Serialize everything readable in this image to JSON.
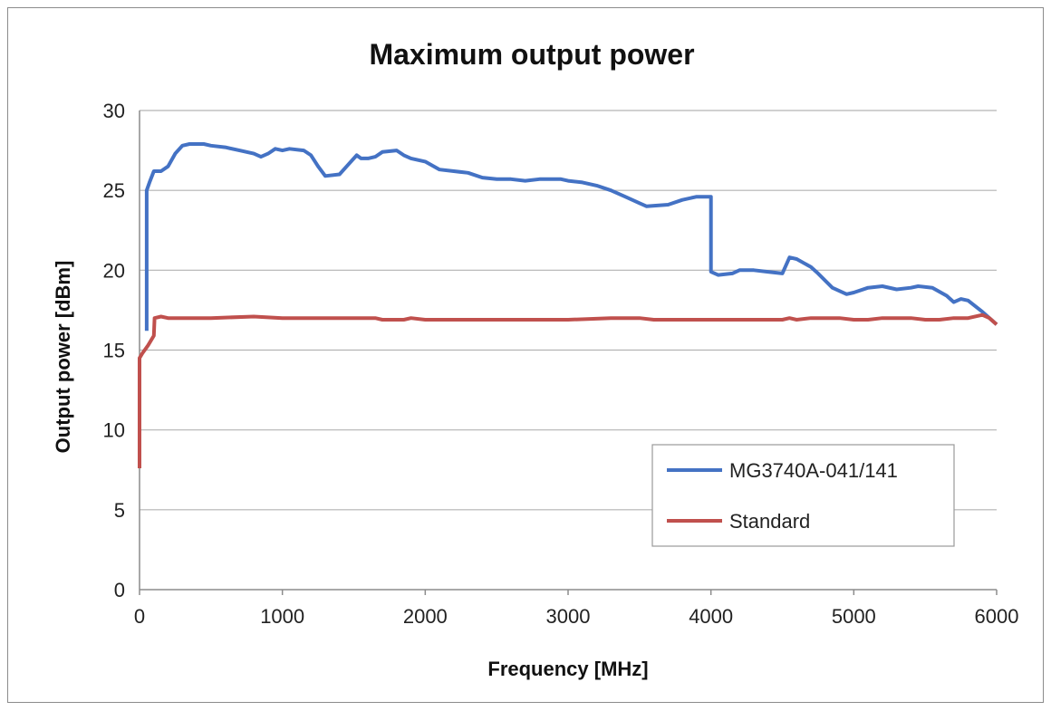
{
  "chart_data": {
    "type": "line",
    "title": "Maximum output power",
    "xlabel": "Frequency [MHz]",
    "ylabel": "Output power [dBm]",
    "xlim": [
      0,
      6000
    ],
    "ylim": [
      0,
      30
    ],
    "x_ticks": [
      "0",
      "1000",
      "2000",
      "3000",
      "4000",
      "5000",
      "6000"
    ],
    "y_ticks": [
      "0",
      "5",
      "10",
      "15",
      "20",
      "25",
      "30"
    ],
    "grid": "horizontal",
    "legend_position": "bottom-right",
    "series": [
      {
        "name": "MG3740A-041/141",
        "color": "#4472c4",
        "points": [
          [
            50,
            16.2
          ],
          [
            50,
            25.0
          ],
          [
            70,
            25.5
          ],
          [
            100,
            26.2
          ],
          [
            150,
            26.2
          ],
          [
            200,
            26.5
          ],
          [
            250,
            27.3
          ],
          [
            300,
            27.8
          ],
          [
            350,
            27.9
          ],
          [
            450,
            27.9
          ],
          [
            500,
            27.8
          ],
          [
            600,
            27.7
          ],
          [
            700,
            27.5
          ],
          [
            800,
            27.3
          ],
          [
            850,
            27.1
          ],
          [
            900,
            27.3
          ],
          [
            950,
            27.6
          ],
          [
            1000,
            27.5
          ],
          [
            1050,
            27.6
          ],
          [
            1150,
            27.5
          ],
          [
            1200,
            27.2
          ],
          [
            1250,
            26.5
          ],
          [
            1300,
            25.9
          ],
          [
            1400,
            26.0
          ],
          [
            1450,
            26.5
          ],
          [
            1520,
            27.2
          ],
          [
            1550,
            27.0
          ],
          [
            1600,
            27.0
          ],
          [
            1650,
            27.1
          ],
          [
            1700,
            27.4
          ],
          [
            1800,
            27.5
          ],
          [
            1850,
            27.2
          ],
          [
            1900,
            27.0
          ],
          [
            2000,
            26.8
          ],
          [
            2100,
            26.3
          ],
          [
            2200,
            26.2
          ],
          [
            2300,
            26.1
          ],
          [
            2400,
            25.8
          ],
          [
            2500,
            25.7
          ],
          [
            2600,
            25.7
          ],
          [
            2700,
            25.6
          ],
          [
            2800,
            25.7
          ],
          [
            2950,
            25.7
          ],
          [
            3000,
            25.6
          ],
          [
            3100,
            25.5
          ],
          [
            3200,
            25.3
          ],
          [
            3300,
            25.0
          ],
          [
            3400,
            24.6
          ],
          [
            3500,
            24.2
          ],
          [
            3550,
            24.0
          ],
          [
            3700,
            24.1
          ],
          [
            3800,
            24.4
          ],
          [
            3900,
            24.6
          ],
          [
            4000,
            24.6
          ],
          [
            4000,
            19.9
          ],
          [
            4050,
            19.7
          ],
          [
            4150,
            19.8
          ],
          [
            4200,
            20.0
          ],
          [
            4300,
            20.0
          ],
          [
            4400,
            19.9
          ],
          [
            4500,
            19.8
          ],
          [
            4550,
            20.8
          ],
          [
            4600,
            20.7
          ],
          [
            4700,
            20.2
          ],
          [
            4750,
            19.8
          ],
          [
            4850,
            18.9
          ],
          [
            4950,
            18.5
          ],
          [
            5000,
            18.6
          ],
          [
            5100,
            18.9
          ],
          [
            5200,
            19.0
          ],
          [
            5300,
            18.8
          ],
          [
            5400,
            18.9
          ],
          [
            5450,
            19.0
          ],
          [
            5550,
            18.9
          ],
          [
            5650,
            18.4
          ],
          [
            5700,
            18.0
          ],
          [
            5750,
            18.2
          ],
          [
            5800,
            18.1
          ],
          [
            5900,
            17.4
          ],
          [
            6000,
            16.6
          ]
        ]
      },
      {
        "name": "Standard",
        "color": "#c0504d",
        "points": [
          [
            0,
            7.6
          ],
          [
            0,
            14.5
          ],
          [
            20,
            14.8
          ],
          [
            60,
            15.3
          ],
          [
            100,
            15.9
          ],
          [
            105,
            17.0
          ],
          [
            150,
            17.1
          ],
          [
            200,
            17.0
          ],
          [
            500,
            17.0
          ],
          [
            800,
            17.1
          ],
          [
            1000,
            17.0
          ],
          [
            1500,
            17.0
          ],
          [
            1650,
            17.0
          ],
          [
            1700,
            16.9
          ],
          [
            1850,
            16.9
          ],
          [
            1900,
            17.0
          ],
          [
            2000,
            16.9
          ],
          [
            3000,
            16.9
          ],
          [
            3300,
            17.0
          ],
          [
            3500,
            17.0
          ],
          [
            3600,
            16.9
          ],
          [
            4500,
            16.9
          ],
          [
            4550,
            17.0
          ],
          [
            4600,
            16.9
          ],
          [
            4700,
            17.0
          ],
          [
            4900,
            17.0
          ],
          [
            5000,
            16.9
          ],
          [
            5100,
            16.9
          ],
          [
            5200,
            17.0
          ],
          [
            5400,
            17.0
          ],
          [
            5500,
            16.9
          ],
          [
            5600,
            16.9
          ],
          [
            5700,
            17.0
          ],
          [
            5800,
            17.0
          ],
          [
            5900,
            17.2
          ],
          [
            5950,
            17.0
          ],
          [
            6000,
            16.6
          ]
        ]
      }
    ]
  }
}
